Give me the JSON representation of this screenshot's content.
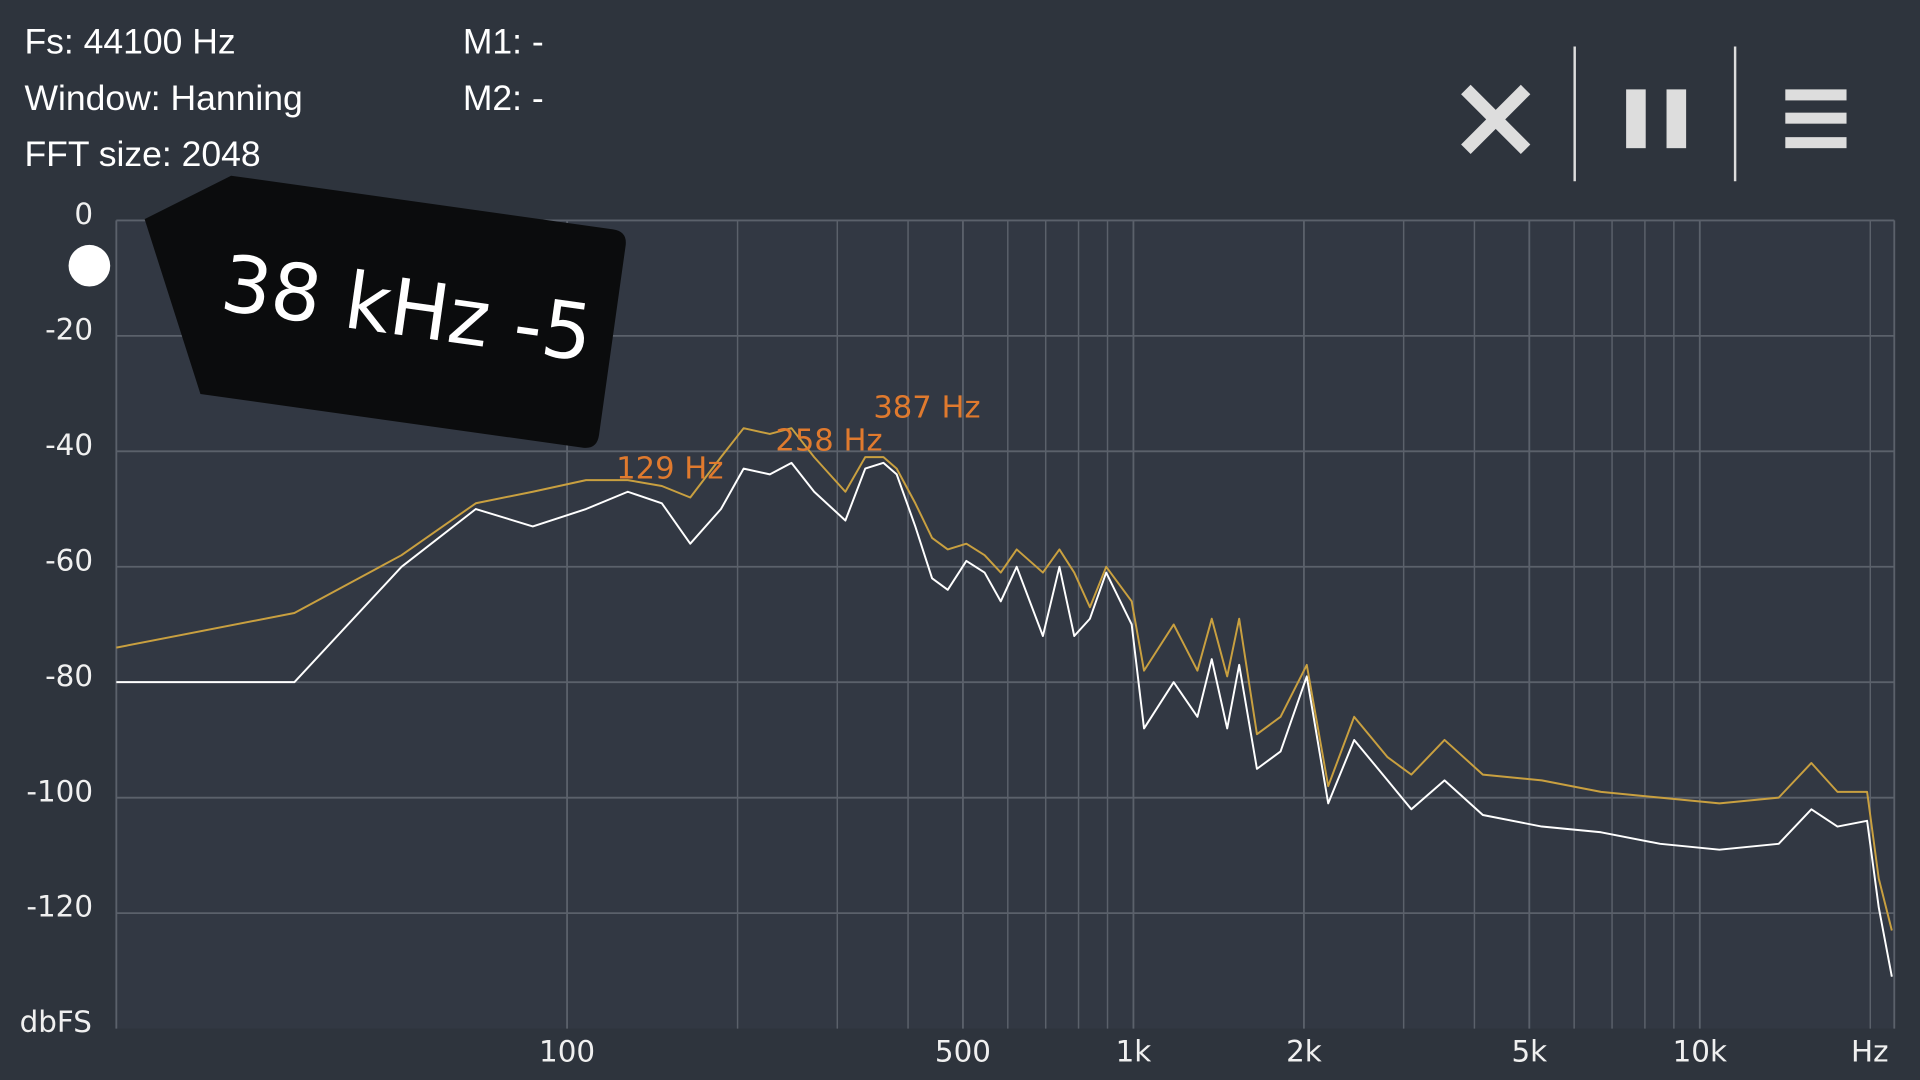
{
  "status": {
    "fs": "Fs: 44100 Hz",
    "window": "Window: Hanning",
    "fft": "FFT size: 2048",
    "m1": "M1: -",
    "m2": "M2: -"
  },
  "marker_label": "38 kHz -5",
  "chart_data": {
    "type": "line",
    "log_x": true,
    "grid": true,
    "y_label": "dbFS",
    "x_label": "Hz",
    "x": [
      16,
      33,
      51,
      69,
      87,
      108,
      128,
      147,
      165,
      187,
      205,
      228,
      249,
      273,
      310,
      336,
      362,
      382,
      412,
      441,
      470,
      507,
      546,
      583,
      622,
      692,
      740,
      786,
      838,
      895,
      993,
      1044,
      1178,
      1297,
      1375,
      1464,
      1537,
      1652,
      1819,
      2023,
      2207,
      2453,
      2810,
      3096,
      3542,
      4139,
      5260,
      6692,
      8512,
      10830,
      13780,
      15740,
      17500,
      19740,
      20700,
      21830
    ],
    "series": [
      {
        "color": "#ffffff",
        "values": [
          -80,
          -80,
          -60,
          -50,
          -53,
          -50,
          -47,
          -49,
          -56,
          -50,
          -43,
          -44,
          -42,
          -47,
          -52,
          -43,
          -42,
          -44,
          -53,
          -62,
          -64,
          -59,
          -61,
          -66,
          -60,
          -72,
          -60,
          -72,
          -69,
          -61,
          -70,
          -88,
          -80,
          -86,
          -76,
          -88,
          -77,
          -95,
          -92,
          -79,
          -101,
          -90,
          -97,
          -102,
          -97,
          -103,
          -105,
          -106,
          -108,
          -109,
          -108,
          -102,
          -105,
          -104,
          -119,
          -131
        ]
      },
      {
        "color": "#c9a040",
        "values": [
          -74,
          -68,
          -58,
          -49,
          -47,
          -45,
          -45,
          -46,
          -48,
          -41,
          -36,
          -37,
          -36,
          -41,
          -47,
          -41,
          -41,
          -43,
          -49,
          -55,
          -57,
          -56,
          -58,
          -61,
          -57,
          -61,
          -57,
          -61,
          -67,
          -60,
          -66,
          -78,
          -70,
          -78,
          -69,
          -79,
          -69,
          -89,
          -86,
          -77,
          -98,
          -86,
          -93,
          -96,
          -90,
          -96,
          -97,
          -99,
          -100,
          -101,
          -100,
          -94,
          -99,
          -99,
          -114,
          -123
        ]
      }
    ],
    "annotations": [
      "129 Hz",
      "258 Hz",
      "387 Hz"
    ],
    "xlim": [
      16,
      22050
    ],
    "ylim": [
      -140,
      0
    ],
    "xticks": [
      100,
      500,
      {
        "value": 1000,
        "label": "1k"
      },
      {
        "value": 2000,
        "label": "2k"
      },
      {
        "value": 5000,
        "label": "5k"
      },
      {
        "value": 10000,
        "label": "10k"
      }
    ],
    "x_minor_ticks": [
      200,
      300,
      400,
      600,
      700,
      800,
      900,
      3000,
      4000,
      6000,
      7000,
      8000,
      9000,
      20000
    ],
    "yticks": [
      0,
      -20,
      -40,
      -60,
      -80,
      -100,
      -120
    ]
  }
}
